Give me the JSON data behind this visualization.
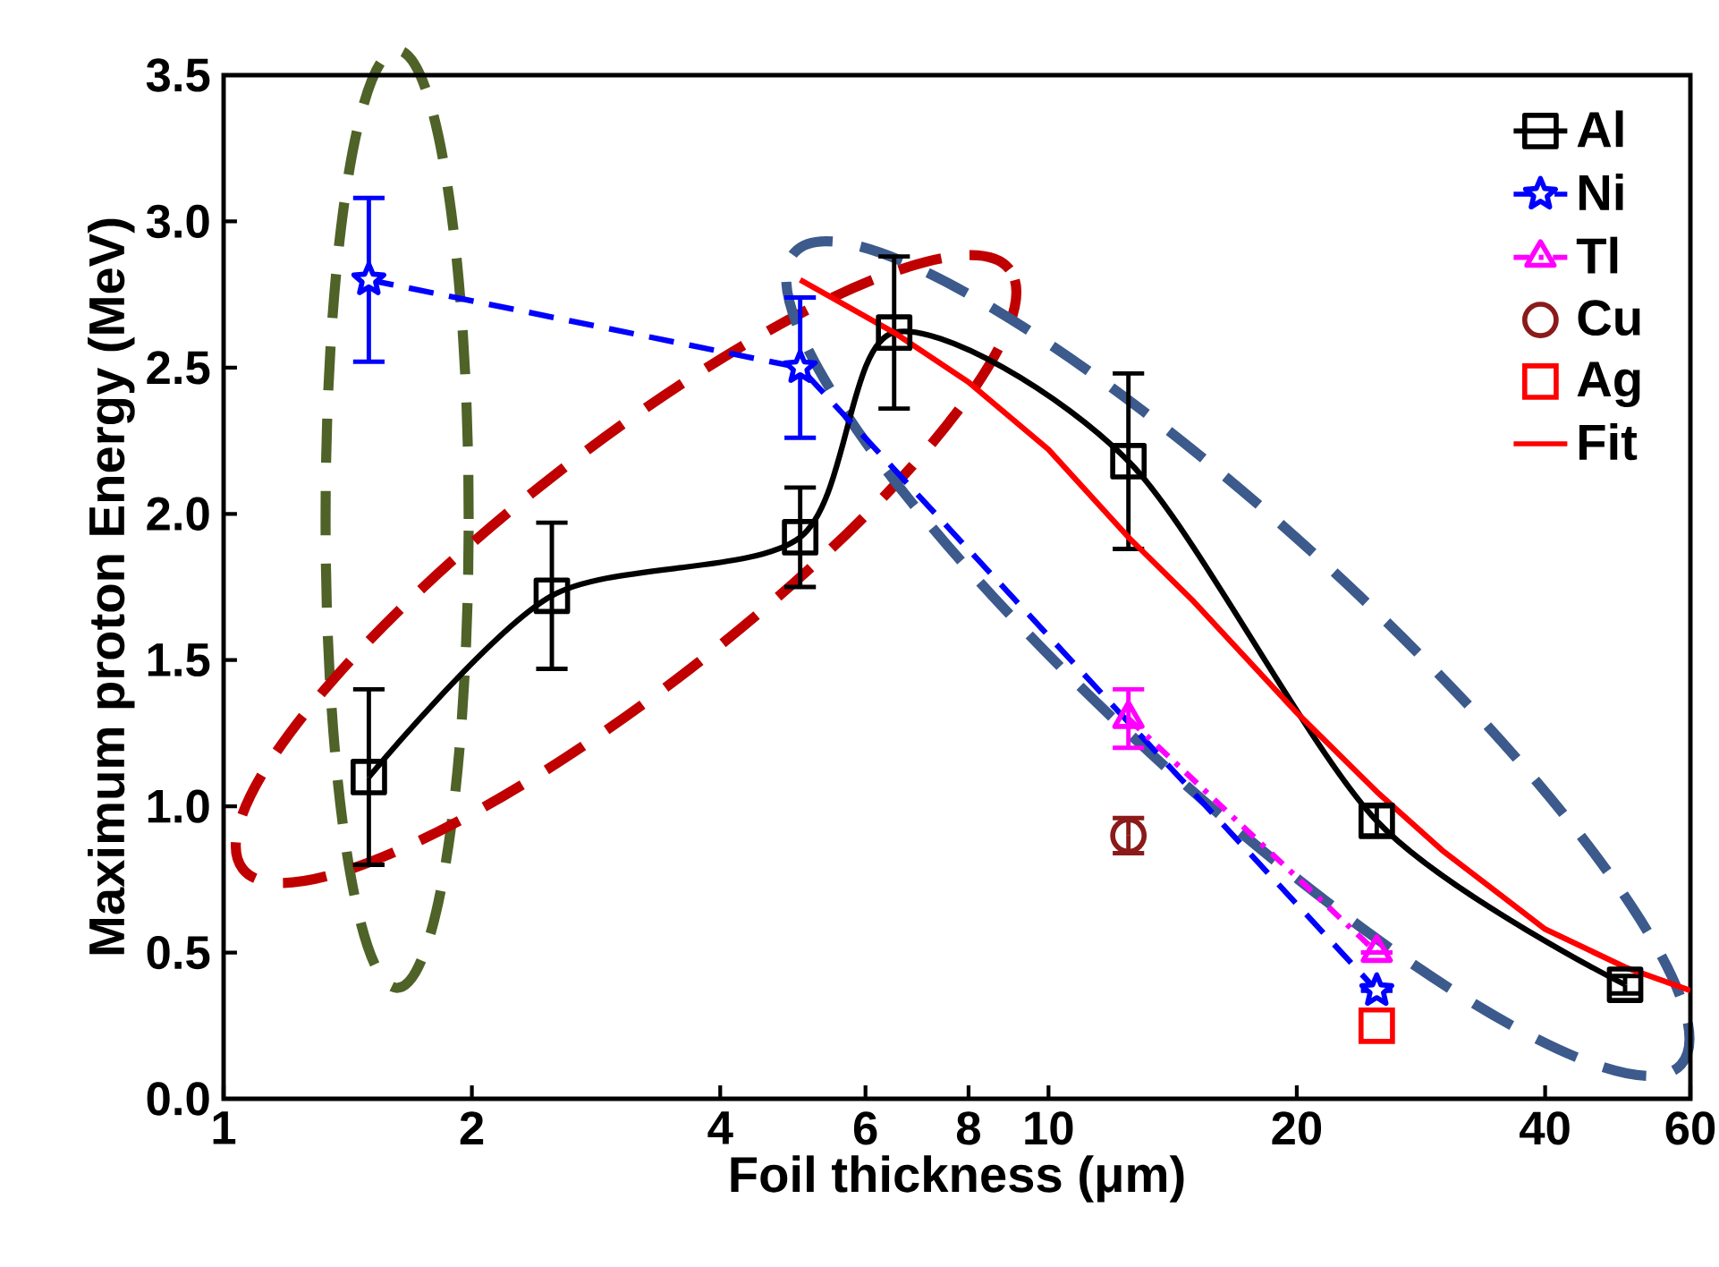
{
  "chart_data": {
    "type": "line",
    "xlabel": "Foil thickness (μm)",
    "ylabel": "Maximum proton Energy (MeV)",
    "log": "x",
    "xlim": [
      1,
      60
    ],
    "ylim": [
      0,
      3.5
    ],
    "xticks": [
      1,
      2,
      4,
      6,
      8,
      10,
      20,
      40,
      60
    ],
    "yticks": [
      {
        "value": 0,
        "label": "0.0"
      },
      0.5,
      {
        "value": 1,
        "label": "1.0"
      },
      1.5,
      {
        "value": 2,
        "label": "2.0"
      },
      2.5,
      {
        "value": 3,
        "label": "3.0"
      },
      3.5
    ],
    "legend": "top right",
    "series": [
      {
        "name": "Al",
        "color": "#000000",
        "marker": "square",
        "line_style": "solid",
        "x": [
          1.5,
          2.5,
          5,
          6.5,
          12.5,
          25,
          50
        ],
        "values": [
          1.1,
          1.72,
          1.92,
          2.62,
          2.18,
          0.95,
          0.39
        ],
        "errors": [
          0.3,
          0.25,
          0.17,
          0.26,
          0.3,
          0.05,
          0.03
        ]
      },
      {
        "name": "Ni",
        "color": "#0000ff",
        "marker": "star",
        "line_style": "dashed",
        "x": [
          1.5,
          5,
          25
        ],
        "values": [
          2.8,
          2.5,
          0.37
        ],
        "errors": [
          0.28,
          0.24,
          null
        ]
      },
      {
        "name": "Tl",
        "color": "#ff00ff",
        "marker": "triangle",
        "line_style": "dotted",
        "x": [
          12.5,
          25
        ],
        "values": [
          1.3,
          0.5
        ],
        "errors": [
          0.1,
          null
        ]
      },
      {
        "name": "Cu",
        "type": "scatter",
        "color": "#8b1a1a",
        "marker": "circle",
        "x": [
          12.5
        ],
        "values": [
          0.9
        ],
        "errors": [
          0.06
        ]
      },
      {
        "name": "Ag",
        "type": "scatter",
        "color": "#ff0000",
        "marker": "square",
        "x": [
          25
        ],
        "values": [
          0.25
        ]
      },
      {
        "name": "Fit",
        "color": "#ff0000",
        "marker": "none",
        "line_style": "solid",
        "x": [
          5,
          6.5,
          8,
          10,
          12.5,
          15,
          20,
          25,
          30,
          40,
          50,
          60
        ],
        "values": [
          2.8,
          2.62,
          2.45,
          2.22,
          1.92,
          1.7,
          1.32,
          1.05,
          0.85,
          0.58,
          0.45,
          0.37
        ]
      }
    ]
  }
}
